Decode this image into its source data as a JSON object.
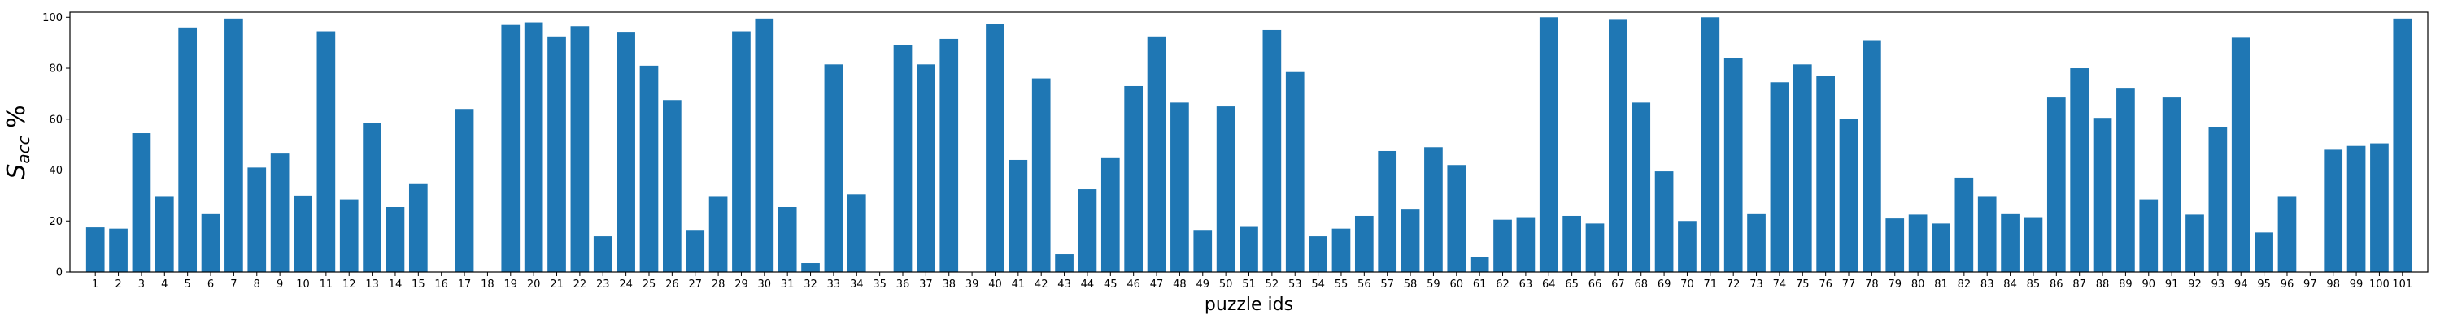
{
  "chart_data": {
    "type": "bar",
    "title": "",
    "xlabel": "puzzle ids",
    "ylabel": "S_acc %",
    "ylim": [
      0,
      102
    ],
    "yticks": [
      0,
      20,
      40,
      60,
      80,
      100
    ],
    "grid": false,
    "bar_color": "#1f77b4",
    "categories": [
      "1",
      "2",
      "3",
      "4",
      "5",
      "6",
      "7",
      "8",
      "9",
      "10",
      "11",
      "12",
      "13",
      "14",
      "15",
      "16",
      "17",
      "18",
      "19",
      "20",
      "21",
      "22",
      "23",
      "24",
      "25",
      "26",
      "27",
      "28",
      "29",
      "30",
      "31",
      "32",
      "33",
      "34",
      "35",
      "36",
      "37",
      "38",
      "39",
      "40",
      "41",
      "42",
      "43",
      "44",
      "45",
      "46",
      "47",
      "48",
      "49",
      "50",
      "51",
      "52",
      "53",
      "54",
      "55",
      "56",
      "57",
      "58",
      "59",
      "60",
      "61",
      "62",
      "63",
      "64",
      "65",
      "66",
      "67",
      "68",
      "69",
      "70",
      "71",
      "72",
      "73",
      "74",
      "75",
      "76",
      "77",
      "78",
      "79",
      "80",
      "81",
      "82",
      "83",
      "84",
      "85",
      "86",
      "87",
      "88",
      "89",
      "90",
      "91",
      "92",
      "93",
      "94",
      "95",
      "96",
      "97",
      "98",
      "99",
      "100",
      "101"
    ],
    "values": [
      17.5,
      17,
      54.5,
      29.5,
      96,
      23,
      99.5,
      41,
      46.5,
      30,
      94.5,
      28.5,
      58.5,
      25.5,
      34.5,
      0,
      64,
      0,
      97,
      98,
      92.5,
      96.5,
      14,
      94,
      81,
      67.5,
      16.5,
      29.5,
      94.5,
      99.5,
      25.5,
      3.5,
      81.5,
      30.5,
      0,
      89,
      81.5,
      91.5,
      0,
      97.5,
      44,
      76,
      7,
      32.5,
      45,
      73,
      92.5,
      66.5,
      16.5,
      65,
      18,
      95,
      78.5,
      14,
      17,
      22,
      47.5,
      24.5,
      49,
      42,
      6,
      20.5,
      21.5,
      100,
      22,
      19,
      99,
      66.5,
      39.5,
      20,
      100,
      84,
      23,
      74.5,
      81.5,
      77,
      60,
      91,
      21,
      22.5,
      19,
      37,
      29.5,
      23,
      21.5,
      68.5,
      80,
      60.5,
      72,
      28.5,
      68.5,
      22.5,
      57,
      92,
      15.5,
      29.5,
      0,
      48,
      49.5,
      50.5,
      99.5
    ]
  }
}
